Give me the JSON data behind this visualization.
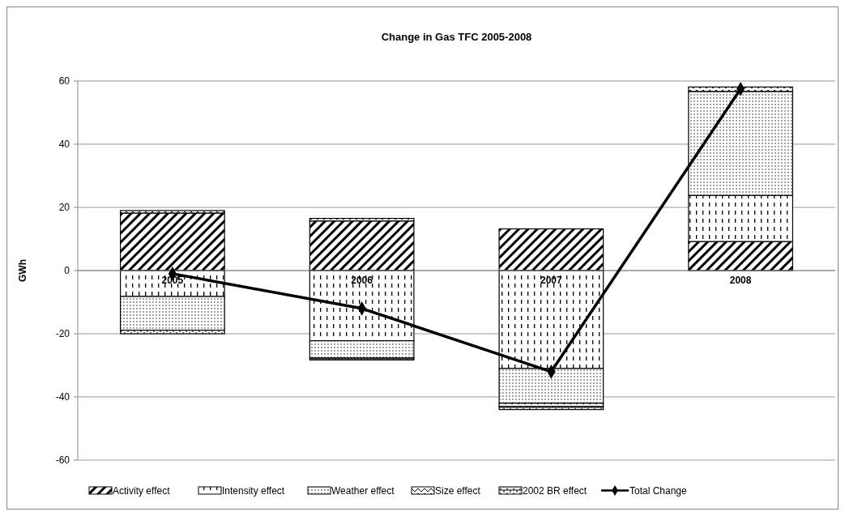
{
  "chart_data": {
    "type": "bar",
    "stacked": true,
    "title": "Change in Gas TFC 2005-2008",
    "ylabel": "GWh",
    "categories": [
      "2005",
      "2006",
      "2007",
      "2008"
    ],
    "series": [
      {
        "name": "Activity effect",
        "color": "#000000",
        "values": [
          18.2,
          15.7,
          13.2,
          9.2
        ]
      },
      {
        "name": "Intensity effect",
        "color": "#000000",
        "values": [
          -8.2,
          -22.2,
          -31,
          14.6
        ]
      },
      {
        "name": "Weather effect",
        "color": "#000000",
        "values": [
          -10.7,
          -5.5,
          -11,
          32.9
        ]
      },
      {
        "name": "Size effect",
        "color": "#000000",
        "values": [
          0.8,
          0.8,
          -1,
          1.4
        ]
      },
      {
        "name": "2002 BR effect",
        "color": "#000000",
        "values": [
          -1.1,
          -0.6,
          -1,
          0
        ]
      },
      {
        "name": "Total Change",
        "type": "line",
        "color": "#000000",
        "marker": "diamond",
        "values": [
          -1,
          -12,
          -32,
          57.5
        ]
      }
    ],
    "ylim": [
      -60,
      60
    ],
    "yticks": [
      -60,
      -40,
      -20,
      0,
      20,
      40,
      60
    ],
    "grid": "y",
    "legend": "bottom"
  }
}
